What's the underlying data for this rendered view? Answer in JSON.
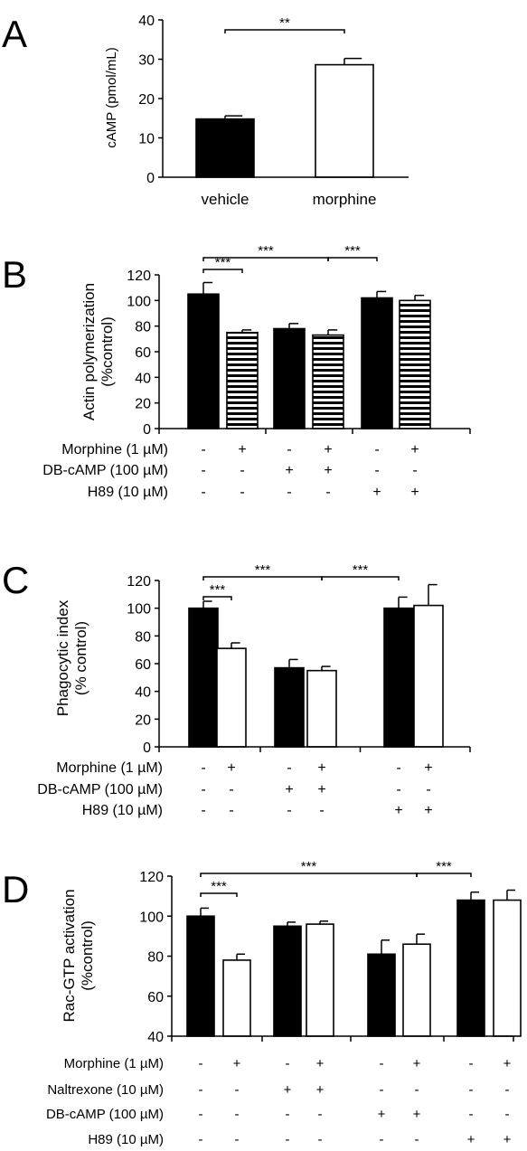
{
  "chart_data": [
    {
      "panel_label": "A",
      "type": "bar",
      "ylabel": "cAMP (pmol/mL)",
      "ylim": [
        0,
        40
      ],
      "yticks": [
        "0",
        "10",
        "20",
        "30",
        "40"
      ],
      "categories": [
        "vehicle",
        "morphine"
      ],
      "values": [
        14.8,
        28.6
      ],
      "errors": [
        0.8,
        1.6
      ],
      "fills": [
        "#000000",
        "#ffffff"
      ],
      "significance": [
        {
          "from": 0,
          "to": 1,
          "label": "**"
        }
      ]
    },
    {
      "panel_label": "B",
      "type": "bar",
      "ylabel": "Actin polymerization",
      "ylabel2": "(%control)",
      "ylim": [
        0,
        120
      ],
      "yticks": [
        "0",
        "20",
        "40",
        "60",
        "80",
        "100",
        "120"
      ],
      "fill_pattern": "striped",
      "values": [
        105,
        75,
        78,
        73,
        102,
        100
      ],
      "errors": [
        9,
        2,
        4,
        4,
        5,
        4
      ],
      "fills": [
        "black",
        "pattern",
        "black",
        "pattern",
        "black",
        "pattern"
      ],
      "conditions": [
        {
          "label": "Morphine (1 µM)",
          "marks": [
            "-",
            "+",
            "-",
            "+",
            "-",
            "+"
          ]
        },
        {
          "label": "DB-cAMP (100 µM)",
          "marks": [
            "-",
            "-",
            "+",
            "+",
            "-",
            "-"
          ]
        },
        {
          "label": "H89 (10 µM)",
          "marks": [
            "-",
            "-",
            "-",
            "-",
            "+",
            "+"
          ]
        }
      ],
      "significance": [
        {
          "from": 0,
          "to": 1,
          "label": "***",
          "level": 0
        },
        {
          "from": 0,
          "to": 3,
          "label": "***",
          "level": 1
        },
        {
          "from": 3,
          "to": 4,
          "label": "***",
          "level": 1
        }
      ]
    },
    {
      "panel_label": "C",
      "type": "bar",
      "ylabel": "Phagocytic index",
      "ylabel2": "(% control)",
      "ylim": [
        0,
        120
      ],
      "yticks": [
        "0",
        "20",
        "40",
        "60",
        "80",
        "100",
        "120"
      ],
      "values": [
        100,
        71,
        57,
        55,
        100,
        102
      ],
      "errors": [
        5,
        4,
        6,
        3,
        8,
        15
      ],
      "fills": [
        "black",
        "white",
        "black",
        "white",
        "black",
        "white"
      ],
      "conditions": [
        {
          "label": "Morphine (1 µM)",
          "marks": [
            "-",
            "+",
            "-",
            "+",
            "-",
            "+"
          ]
        },
        {
          "label": "DB-cAMP (100 µM)",
          "marks": [
            "-",
            "-",
            "+",
            "+",
            "-",
            "-"
          ]
        },
        {
          "label": "H89 (10 µM)",
          "marks": [
            "-",
            "-",
            "-",
            "-",
            "+",
            "+"
          ]
        }
      ],
      "significance": [
        {
          "from": 0,
          "to": 1,
          "label": "***",
          "level": 0
        },
        {
          "from": 0,
          "to": 3,
          "label": "***",
          "level": 1
        },
        {
          "from": 3,
          "to": 4,
          "label": "***",
          "level": 1
        }
      ]
    },
    {
      "panel_label": "D",
      "type": "bar",
      "ylabel": "Rac-GTP activation",
      "ylabel2": "(%control)",
      "ylim": [
        40,
        120
      ],
      "yticks": [
        "40",
        "60",
        "80",
        "100",
        "120"
      ],
      "values": [
        100,
        78,
        95,
        96,
        81,
        86,
        108,
        108
      ],
      "errors": [
        4,
        3,
        2,
        1.5,
        7,
        5,
        4,
        5
      ],
      "fills": [
        "black",
        "white",
        "black",
        "white",
        "black",
        "white",
        "black",
        "white"
      ],
      "conditions": [
        {
          "label": "Morphine (1 µM)",
          "marks": [
            "-",
            "+",
            "-",
            "+",
            "-",
            "+",
            "-",
            "+"
          ]
        },
        {
          "label": "Naltrexone (10 µM)",
          "marks": [
            "-",
            "-",
            "+",
            "+",
            "-",
            "-",
            "-",
            "-"
          ]
        },
        {
          "label": "DB-cAMP (100 µM)",
          "marks": [
            "-",
            "-",
            "-",
            "-",
            "+",
            "+",
            "-",
            "-"
          ]
        },
        {
          "label": "H89 (10 µM)",
          "marks": [
            "-",
            "-",
            "-",
            "-",
            "-",
            "-",
            "+",
            "+"
          ]
        }
      ],
      "significance": [
        {
          "from": 0,
          "to": 1,
          "label": "***",
          "level": 0
        },
        {
          "from": 0,
          "to": 5,
          "label": "***",
          "level": 1
        },
        {
          "from": 5,
          "to": 6,
          "label": "***",
          "level": 1
        }
      ]
    }
  ]
}
